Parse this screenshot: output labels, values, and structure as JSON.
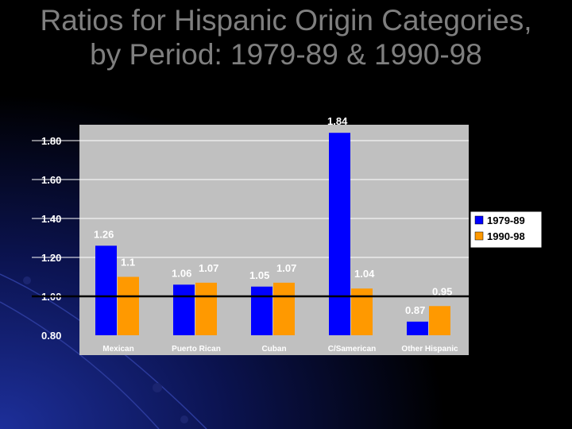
{
  "slide": {
    "title_line1": "Ratios for Hispanic Origin Categories,",
    "title_line2": "by Period: 1979-89 & 1990-98"
  },
  "colors": {
    "background": "#000000",
    "plot_area": "#c0c0c0",
    "series_1979_89": "#0000ff",
    "series_1990_98": "#ff9900",
    "title_text": "#7f7f7f",
    "reference_line": "#000000"
  },
  "chart_data": {
    "type": "bar",
    "title": "",
    "xlabel": "",
    "ylabel": "",
    "categories": [
      "Mexican",
      "Puerto Rican",
      "Cuban",
      "C/Samerican",
      "Other Hispanic"
    ],
    "series": [
      {
        "name": "1979-89",
        "values": [
          1.26,
          1.06,
          1.05,
          1.84,
          0.87
        ],
        "labels": [
          "1.26",
          "1.06",
          "1.05",
          "1.84",
          "0.87"
        ]
      },
      {
        "name": "1990-98",
        "values": [
          1.1,
          1.07,
          1.07,
          1.04,
          0.95
        ],
        "labels": [
          "1.1",
          "1.07",
          "1.07",
          "1.04",
          "0.95"
        ]
      }
    ],
    "ylim": [
      0.8,
      1.9
    ],
    "yticks": [
      0.8,
      1.0,
      1.2,
      1.4,
      1.6,
      1.8
    ],
    "ytick_labels": [
      "0.80",
      "1.00",
      "1.20",
      "1.40",
      "1.60",
      "1.80"
    ],
    "reference_value": 1.0,
    "grid": true,
    "legend_position": "right"
  }
}
